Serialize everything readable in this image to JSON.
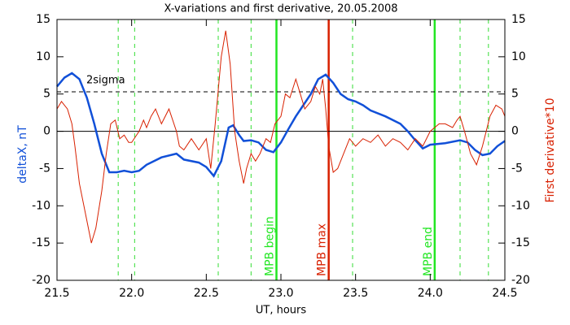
{
  "chart_data": {
    "type": "line",
    "title": "X-variations and first derivative, 20.05.2008",
    "xlabel": "UT, hours",
    "ylabel": "deltaX, nT",
    "y2label": "First derivative*10",
    "xlim": [
      21.5,
      24.5
    ],
    "xticks": [
      21.5,
      {
        "value": 22,
        "label": "22.0"
      },
      22.5,
      {
        "value": 23,
        "label": "23.0"
      },
      23.5,
      {
        "value": 24,
        "label": "24.0"
      },
      24.5
    ],
    "ylim": [
      -20,
      15
    ],
    "yticks": [
      15,
      10,
      5,
      0,
      -5,
      -10,
      -15,
      -20
    ],
    "y2lim": [
      -20,
      15
    ],
    "y2ticks": [
      15,
      10,
      5,
      0,
      -5,
      -10,
      -15,
      -20
    ],
    "series": [
      {
        "name": "deltaX, nT",
        "color": "#1150d8",
        "axis": "y",
        "x": [
          21.5,
          21.55,
          21.6,
          21.65,
          21.7,
          21.75,
          21.8,
          21.85,
          21.9,
          21.95,
          22.0,
          22.05,
          22.1,
          22.2,
          22.3,
          22.35,
          22.45,
          22.5,
          22.55,
          22.6,
          22.65,
          22.68,
          22.72,
          22.75,
          22.8,
          22.85,
          22.9,
          22.95,
          23.0,
          23.05,
          23.1,
          23.15,
          23.2,
          23.25,
          23.3,
          23.35,
          23.4,
          23.45,
          23.5,
          23.55,
          23.6,
          23.7,
          23.8,
          23.85,
          23.9,
          23.95,
          24.0,
          24.1,
          24.2,
          24.25,
          24.3,
          24.35,
          24.4,
          24.45,
          24.5
        ],
        "values": [
          6,
          7.2,
          7.8,
          7,
          4.5,
          1,
          -3,
          -5.5,
          -5.5,
          -5.3,
          -5.5,
          -5.3,
          -4.5,
          -3.5,
          -3,
          -3.8,
          -4.2,
          -4.8,
          -6,
          -4,
          0.5,
          0.8,
          -0.5,
          -1.3,
          -1.2,
          -1.5,
          -2.5,
          -2.8,
          -1.5,
          0.3,
          2,
          3.5,
          5,
          7,
          7.6,
          6.5,
          5,
          4.3,
          4,
          3.5,
          2.8,
          2,
          1,
          0,
          -1.2,
          -2.3,
          -1.8,
          -1.6,
          -1.2,
          -1.5,
          -2.5,
          -3.2,
          -3,
          -2,
          -1.3
        ]
      },
      {
        "name": "First derivative*10",
        "color": "#d82000",
        "axis": "y2",
        "x": [
          21.5,
          21.53,
          21.57,
          21.6,
          21.62,
          21.65,
          21.7,
          21.73,
          21.76,
          21.8,
          21.83,
          21.86,
          21.89,
          21.92,
          21.95,
          21.98,
          22.0,
          22.05,
          22.08,
          22.1,
          22.13,
          22.16,
          22.2,
          22.25,
          22.3,
          22.32,
          22.35,
          22.4,
          22.45,
          22.5,
          22.53,
          22.56,
          22.6,
          22.63,
          22.66,
          22.69,
          22.72,
          22.75,
          22.77,
          22.8,
          22.83,
          22.86,
          22.9,
          22.93,
          22.96,
          23.0,
          23.03,
          23.06,
          23.1,
          23.13,
          23.16,
          23.2,
          23.23,
          23.26,
          23.28,
          23.3,
          23.32,
          23.35,
          23.38,
          23.42,
          23.46,
          23.5,
          23.55,
          23.6,
          23.65,
          23.7,
          23.75,
          23.8,
          23.85,
          23.9,
          23.95,
          24.0,
          24.03,
          24.06,
          24.1,
          24.15,
          24.18,
          24.2,
          24.23,
          24.27,
          24.31,
          24.35,
          24.4,
          24.44,
          24.48,
          24.5
        ],
        "values": [
          3,
          4,
          3,
          1,
          -2,
          -7,
          -12,
          -15,
          -13,
          -8,
          -3,
          1,
          1.5,
          -1,
          -0.5,
          -1.5,
          -1.5,
          0,
          1.5,
          0.5,
          2,
          3,
          1,
          3,
          0,
          -2,
          -2.5,
          -1,
          -2.5,
          -1,
          -5,
          1,
          10,
          13.5,
          9,
          0,
          -4,
          -7,
          -5,
          -3,
          -4,
          -3,
          -1,
          -1.5,
          1,
          2,
          5,
          4.5,
          7,
          5,
          3,
          4,
          6,
          5,
          7,
          3,
          -2,
          -5.5,
          -5,
          -3,
          -1,
          -2,
          -1,
          -1.5,
          -0.5,
          -2,
          -1,
          -1.5,
          -2.5,
          -1,
          -2,
          0,
          0.5,
          1,
          1,
          0.5,
          1.5,
          2,
          0,
          -3,
          -4.5,
          -2,
          2,
          3.5,
          3,
          2
        ]
      }
    ],
    "hline": {
      "value": 5.3,
      "label": "2sigma"
    },
    "vlines": [
      {
        "x": 21.91,
        "color": "#33dd33",
        "style": "dashed"
      },
      {
        "x": 22.02,
        "color": "#33dd33",
        "style": "dashed"
      },
      {
        "x": 22.58,
        "color": "#33dd33",
        "style": "dashed"
      },
      {
        "x": 22.8,
        "color": "#33dd33",
        "style": "dashed"
      },
      {
        "x": 22.97,
        "color": "#22e622",
        "style": "solid",
        "label": "MPB begin"
      },
      {
        "x": 23.32,
        "color": "#d82000",
        "style": "solid",
        "label": "MPB max"
      },
      {
        "x": 23.48,
        "color": "#33dd33",
        "style": "dashed"
      },
      {
        "x": 24.03,
        "color": "#22e622",
        "style": "solid",
        "label": "MPB end"
      },
      {
        "x": 24.2,
        "color": "#33dd33",
        "style": "dashed"
      },
      {
        "x": 24.39,
        "color": "#33dd33",
        "style": "dashed"
      }
    ]
  }
}
